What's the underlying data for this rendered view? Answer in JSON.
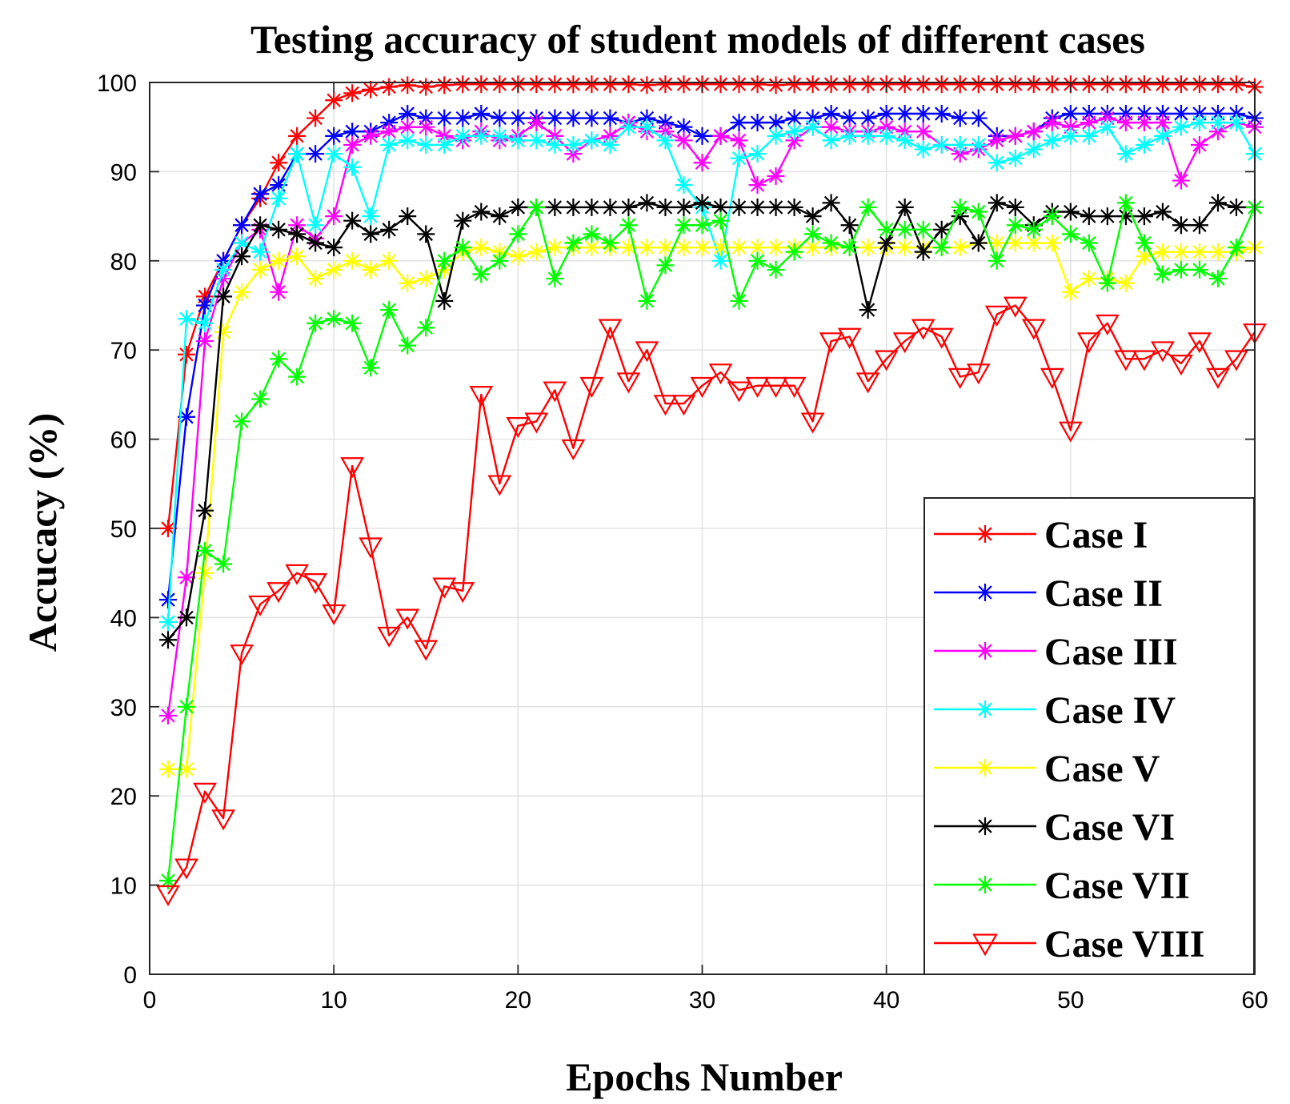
{
  "chart_data": {
    "type": "line",
    "title": "Testing accuracy of student models of different cases",
    "xlabel": "Epochs Number",
    "ylabel": "Accucacy (%)",
    "xlim": [
      0,
      60
    ],
    "ylim": [
      0,
      100
    ],
    "xticks": [
      0,
      10,
      20,
      30,
      40,
      50,
      60
    ],
    "yticks": [
      0,
      10,
      20,
      30,
      40,
      50,
      60,
      70,
      80,
      90,
      100
    ],
    "grid": true,
    "legend_position": "bottom-right",
    "x": [
      1,
      2,
      3,
      4,
      5,
      6,
      7,
      8,
      9,
      10,
      11,
      12,
      13,
      14,
      15,
      16,
      17,
      18,
      19,
      20,
      21,
      22,
      23,
      24,
      25,
      26,
      27,
      28,
      29,
      30,
      31,
      32,
      33,
      34,
      35,
      36,
      37,
      38,
      39,
      40,
      41,
      42,
      43,
      44,
      45,
      46,
      47,
      48,
      49,
      50,
      51,
      52,
      53,
      54,
      55,
      56,
      57,
      58,
      59,
      60
    ],
    "series": [
      {
        "name": "Case I",
        "color": "#ff0000",
        "marker": "star",
        "values": [
          50,
          69.5,
          76,
          80,
          84,
          87,
          91,
          94,
          96,
          98,
          98.8,
          99.2,
          99.5,
          99.7,
          99.5,
          99.7,
          99.8,
          99.8,
          99.8,
          99.8,
          99.8,
          99.8,
          99.8,
          99.8,
          99.8,
          99.8,
          99.7,
          99.8,
          99.8,
          99.8,
          99.8,
          99.8,
          99.8,
          99.7,
          99.8,
          99.8,
          99.8,
          99.8,
          99.8,
          99.8,
          99.8,
          99.8,
          99.8,
          99.8,
          99.8,
          99.8,
          99.8,
          99.8,
          99.8,
          99.8,
          99.8,
          99.8,
          99.8,
          99.8,
          99.8,
          99.8,
          99.8,
          99.8,
          99.8,
          99.5
        ]
      },
      {
        "name": "Case II",
        "color": "#0000ff",
        "marker": "star",
        "values": [
          42,
          62.5,
          75,
          80,
          84,
          87.5,
          88.5,
          92,
          92,
          94,
          94.5,
          94.5,
          95.5,
          96.5,
          96,
          96,
          96,
          96.5,
          96,
          96,
          96,
          96,
          96,
          96,
          96,
          95.5,
          96,
          95.5,
          95,
          94,
          94,
          95.5,
          95.5,
          95.5,
          96,
          96,
          96.5,
          96,
          96,
          96.5,
          96.5,
          96.5,
          96.5,
          96,
          96,
          94,
          94,
          94.5,
          96,
          96.5,
          96.5,
          96.5,
          96.5,
          96.5,
          96.5,
          96.5,
          96.5,
          96.5,
          96.5,
          96
        ]
      },
      {
        "name": "Case III",
        "color": "#ff00ff",
        "marker": "star",
        "values": [
          29,
          44.5,
          71,
          78,
          82,
          83.5,
          76.5,
          84,
          82.5,
          85,
          93,
          94,
          94.5,
          95,
          95,
          94,
          93.5,
          94.5,
          93.5,
          94,
          95.5,
          94,
          92,
          93.5,
          94,
          95.5,
          94.5,
          94.5,
          93.5,
          91,
          94,
          93.5,
          88.5,
          89.5,
          93.5,
          95,
          95,
          94.5,
          94.5,
          95,
          94.5,
          94.5,
          93,
          92,
          92.5,
          93.5,
          94,
          94.5,
          95.5,
          95,
          95.5,
          96,
          95.5,
          95.5,
          95.5,
          89,
          93,
          94.5,
          95.5,
          95
        ]
      },
      {
        "name": "Case IV",
        "color": "#00ffff",
        "marker": "star",
        "values": [
          39.5,
          73.5,
          73,
          79,
          82,
          81,
          87,
          92,
          84,
          92,
          90.5,
          85,
          93,
          93.5,
          93,
          93,
          94,
          94,
          94,
          93.5,
          93.5,
          93,
          93,
          93.5,
          93,
          95,
          95,
          93.5,
          88.5,
          86,
          80,
          91.5,
          92,
          94,
          94.5,
          95,
          93.5,
          94,
          94,
          94,
          93.5,
          92.5,
          93,
          93,
          93,
          91,
          91.5,
          92.5,
          93.5,
          94,
          94,
          95,
          92,
          93,
          94,
          95,
          95.5,
          95.5,
          95.5,
          92
        ]
      },
      {
        "name": "Case V",
        "color": "#ffff00",
        "marker": "star",
        "values": [
          23,
          23,
          45,
          72,
          76.5,
          79,
          80,
          80.5,
          78,
          79,
          80,
          79,
          80,
          77.5,
          78,
          79,
          81,
          81.5,
          81,
          80.5,
          81,
          81.5,
          81.5,
          81.5,
          81.5,
          81.5,
          81.5,
          81.5,
          81.5,
          81.5,
          81.5,
          81.5,
          81.5,
          81.5,
          81.5,
          81.5,
          81.5,
          81.5,
          81.5,
          81.5,
          81.5,
          81.5,
          81.5,
          81.5,
          82,
          82,
          82,
          82,
          82,
          76.5,
          78,
          78,
          77.5,
          80.5,
          81,
          81,
          81,
          81,
          81,
          81.5
        ]
      },
      {
        "name": "Case VI",
        "color": "#000000",
        "marker": "star",
        "values": [
          37.5,
          40,
          52,
          76,
          80.5,
          84,
          83.5,
          83,
          82,
          81.5,
          84.5,
          83,
          83.5,
          85,
          83,
          75.5,
          84.5,
          85.5,
          85,
          86,
          86,
          86,
          86,
          86,
          86,
          86,
          86.5,
          86,
          86,
          86.5,
          86,
          86,
          86,
          86,
          86,
          85,
          86.5,
          84,
          74.5,
          82,
          86,
          81,
          83.5,
          85,
          82,
          86.5,
          86,
          84,
          85.5,
          85.5,
          85,
          85,
          85,
          85,
          85.5,
          84,
          84,
          86.5,
          86,
          86
        ]
      },
      {
        "name": "Case VII",
        "color": "#00ff00",
        "marker": "star",
        "values": [
          10.5,
          30,
          47.5,
          46,
          62,
          64.5,
          69,
          67,
          73,
          73.5,
          73,
          68,
          74.5,
          70.5,
          72.5,
          80,
          81.5,
          78.5,
          80,
          83,
          86,
          78,
          82,
          83,
          82,
          84,
          75.5,
          79.5,
          84,
          84,
          84.5,
          75.5,
          80,
          79,
          81,
          83,
          82,
          81.5,
          86,
          83.5,
          83.5,
          83.5,
          81.5,
          86,
          85.5,
          80,
          84,
          83.5,
          85,
          83,
          82,
          77.5,
          86.5,
          82,
          78.5,
          79,
          79,
          78,
          81.5,
          86
        ]
      },
      {
        "name": "Case VIII",
        "color": "#ff0000",
        "marker": "triangle-down",
        "values": [
          9,
          12,
          20.5,
          17.5,
          36,
          41.5,
          43,
          45,
          44,
          40.5,
          57,
          48,
          38,
          40,
          36.5,
          43.5,
          43,
          65,
          55,
          61.5,
          62,
          65.5,
          59,
          66,
          72.5,
          66.5,
          70,
          64,
          64,
          66,
          67.5,
          65.5,
          66,
          66,
          66,
          62,
          71,
          71.5,
          66.5,
          69,
          71,
          72.5,
          71.5,
          67,
          67.5,
          74,
          75,
          72.5,
          67,
          61,
          71,
          73,
          69,
          69,
          70,
          68.5,
          71,
          67,
          69,
          72
        ]
      }
    ]
  }
}
